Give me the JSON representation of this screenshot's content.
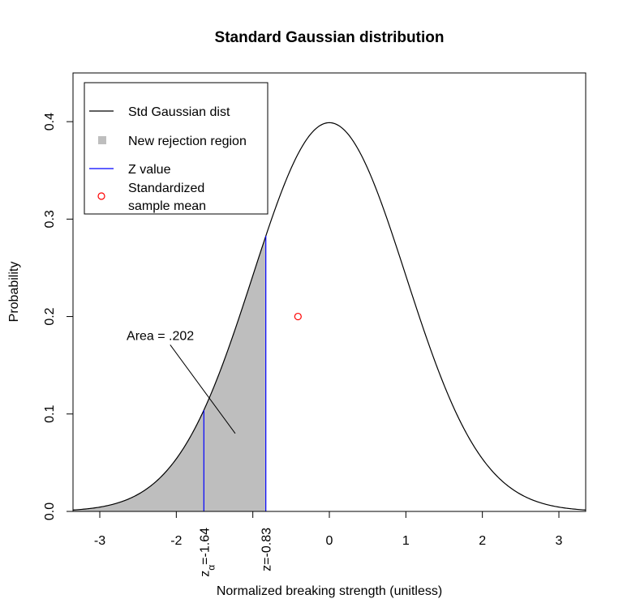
{
  "chart_data": {
    "type": "line",
    "title": "Standard Gaussian distribution",
    "xlabel": "Normalized breaking strength (unitless)",
    "ylabel": "Probability",
    "xlim": [
      -3.35,
      3.35
    ],
    "ylim": [
      0,
      0.45
    ],
    "x_ticks": [
      -3,
      -2,
      -1,
      0,
      1,
      2,
      3
    ],
    "x_tick_labels": [
      "-3",
      "-2",
      "",
      "0",
      "1",
      "2",
      "3"
    ],
    "y_ticks": [
      0.0,
      0.1,
      0.2,
      0.3,
      0.4
    ],
    "y_tick_labels": [
      "0.0",
      "0.1",
      "0.2",
      "0.3",
      "0.4"
    ],
    "grid": false,
    "series": [
      {
        "name": "Std Gaussian dist",
        "kind": "density",
        "mean": 0,
        "sd": 1,
        "color": "#000000"
      }
    ],
    "shaded_region": {
      "name": "New rejection region",
      "from": -3.35,
      "to": -0.83,
      "color": "#bebebe"
    },
    "z_lines": {
      "name": "Z value",
      "color": "#0000ff",
      "lines": [
        {
          "x": -1.64,
          "label_main": "z",
          "label_sub": "α",
          "label_rest": "=-1.64"
        },
        {
          "x": -0.83,
          "label_main": "z=-0.83"
        }
      ]
    },
    "points": [
      {
        "name": "Standardized sample mean",
        "x": -0.41,
        "y": 0.2,
        "color": "#ff0000"
      }
    ],
    "annotation": {
      "text": "Area = .202",
      "text_x": -2.65,
      "text_y": 0.176,
      "arrow_from": [
        -2.08,
        0.171
      ],
      "arrow_to": [
        -1.23,
        0.08
      ]
    },
    "legend": {
      "position": "top-left",
      "entries": [
        {
          "label": "Std Gaussian dist",
          "symbol": "line",
          "color": "#000000"
        },
        {
          "label": "New rejection region",
          "symbol": "square",
          "color": "#bebebe"
        },
        {
          "label": "Z value",
          "symbol": "line",
          "color": "#0000ff"
        },
        {
          "label": "Standardized",
          "label2": "sample mean",
          "symbol": "circle",
          "color": "#ff0000"
        }
      ]
    }
  }
}
